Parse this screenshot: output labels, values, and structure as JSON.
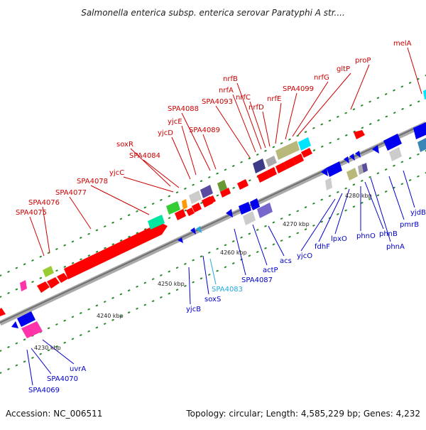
{
  "title": "Salmonella enterica subsp. enterica serovar Paratyphi A str....",
  "footer": {
    "accession": "Accession: NC_006511",
    "topology": "Topology: circular; Length: 4,585,229 bp; Genes: 4,232"
  },
  "colors": {
    "forward_label": "#cc0000",
    "reverse_label": "#0000cc",
    "highlight_label": "#22aadd",
    "forward_gene": "#ff0000",
    "reverse_gene": "#0000ee",
    "backbone": "#8a8a8a",
    "tick": "#2a8a2a"
  },
  "kbp_labels": [
    "4230 kbp",
    "4240 kbp",
    "4250 kbp",
    "4260 kbp",
    "4270 kbp",
    "4280 kbp"
  ],
  "forward_labels": [
    "SPA4075",
    "SPA4076",
    "SPA4077",
    "SPA4078",
    "yjcC",
    "SPA4084",
    "soxR",
    "yjcD",
    "yjcE",
    "SPA4088",
    "SPA4089",
    "SPA4093",
    "nrfA",
    "nrfB",
    "nrfC",
    "nrfD",
    "nrfE",
    "SPA4099",
    "nrfG",
    "gltP",
    "proP",
    "melA"
  ],
  "reverse_labels": [
    "SPA4069",
    "SPA4070",
    "uvrA",
    "yjcB",
    "soxS",
    "SPA4083",
    "SPA4087",
    "actP",
    "acs",
    "yjcO",
    "fdhF",
    "lpxO",
    "phnO",
    "phnB",
    "phnA",
    "pmrB",
    "yjdB"
  ]
}
